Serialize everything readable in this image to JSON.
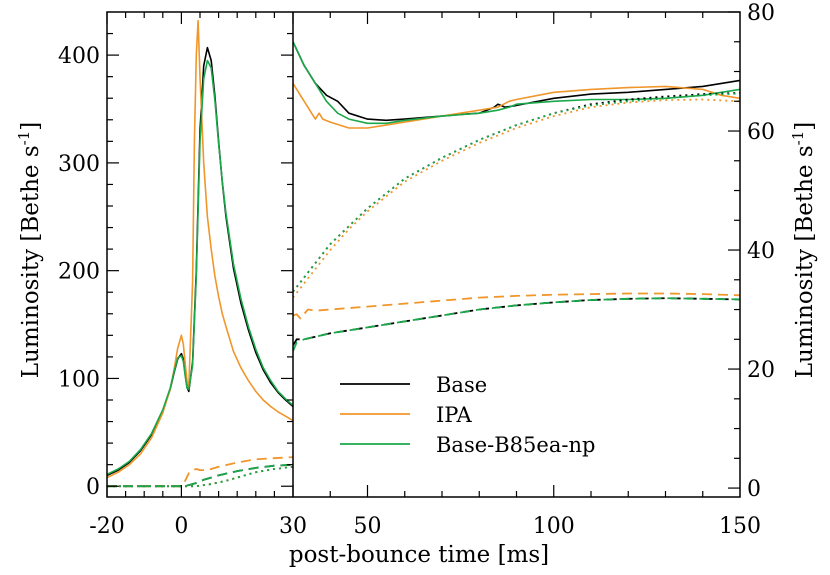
{
  "chart_data": {
    "type": "line",
    "xlabel": "post-bounce time [ms]",
    "panels": [
      {
        "id": "left",
        "xlim": [
          -20,
          30
        ],
        "ylim": [
          -10,
          440
        ],
        "xticks": [
          -20,
          0,
          30
        ],
        "xtick_labels": [
          "-20",
          "0",
          "30"
        ],
        "yticks": [
          0,
          100,
          200,
          300,
          400
        ],
        "ytick_labels": [
          "0",
          "100",
          "200",
          "300",
          "400"
        ],
        "ylabel_parts": [
          "Luminosity [Bethe s",
          "-1",
          "]"
        ]
      },
      {
        "id": "right",
        "xlim": [
          30,
          150
        ],
        "ylim": [
          -1.5,
          80
        ],
        "xticks": [
          50,
          100,
          150
        ],
        "xtick_labels": [
          "50",
          "100",
          "150"
        ],
        "yticks": [
          0,
          20,
          40,
          60,
          80
        ],
        "ytick_labels": [
          "0",
          "20",
          "40",
          "60",
          "80"
        ],
        "ylabel_parts": [
          "Luminosity [Bethe s",
          "-1",
          "]"
        ]
      }
    ],
    "legend": {
      "position": "bottom-left of right panel",
      "entries": [
        {
          "label": "Base",
          "color": "#000000"
        },
        {
          "label": "IPA",
          "color": "#f0962a"
        },
        {
          "label": "Base-B85ea-np",
          "color": "#1aa84a"
        }
      ]
    },
    "series": [
      {
        "model": "Base",
        "style": "solid",
        "color": "#000000",
        "panel": "left",
        "x": [
          -20,
          -17,
          -14,
          -11,
          -8,
          -5,
          -3,
          -2,
          -1,
          0,
          0.5,
          1,
          1.5,
          2,
          3,
          4,
          5,
          6,
          7,
          8,
          9,
          10,
          11,
          12,
          14,
          16,
          18,
          20,
          22,
          24,
          26,
          28,
          30
        ],
        "y": [
          10,
          15,
          22,
          33,
          48,
          70,
          90,
          105,
          118,
          123,
          118,
          105,
          92,
          88,
          115,
          200,
          330,
          390,
          407,
          395,
          362,
          320,
          282,
          250,
          202,
          170,
          145,
          124,
          108,
          96,
          87,
          80,
          74
        ]
      },
      {
        "model": "IPA",
        "style": "solid",
        "color": "#f0962a",
        "panel": "left",
        "x": [
          -20,
          -17,
          -14,
          -11,
          -8,
          -5,
          -3,
          -2,
          -1,
          0,
          0.5,
          1,
          1.5,
          2,
          3,
          3.5,
          4,
          4.5,
          5,
          6,
          7,
          8,
          9,
          10,
          11,
          12,
          14,
          16,
          18,
          20,
          22,
          24,
          26,
          28,
          30
        ],
        "y": [
          8,
          13,
          20,
          30,
          45,
          68,
          90,
          108,
          128,
          140,
          132,
          115,
          98,
          92,
          190,
          320,
          400,
          432,
          380,
          300,
          250,
          220,
          195,
          176,
          160,
          148,
          125,
          110,
          98,
          88,
          80,
          74,
          69,
          65,
          61
        ]
      },
      {
        "model": "Base-B85ea-np",
        "style": "solid",
        "color": "#1aa84a",
        "panel": "left",
        "x": [
          -20,
          -17,
          -14,
          -11,
          -8,
          -5,
          -3,
          -2,
          -1,
          0,
          0.5,
          1,
          1.5,
          2,
          3,
          4,
          5,
          6,
          7,
          8,
          9,
          10,
          11,
          12,
          14,
          16,
          18,
          20,
          22,
          24,
          26,
          28,
          30
        ],
        "y": [
          11,
          16,
          23,
          34,
          49,
          71,
          91,
          106,
          119,
          121,
          116,
          103,
          91,
          90,
          112,
          195,
          320,
          378,
          395,
          388,
          358,
          318,
          283,
          253,
          206,
          174,
          148,
          127,
          110,
          98,
          88,
          81,
          75
        ]
      },
      {
        "model": "Base",
        "style": "dashed",
        "color": "#000000",
        "panel": "left",
        "x": [
          -20,
          -10,
          0,
          2,
          4,
          6,
          10,
          15,
          20,
          25,
          30
        ],
        "y": [
          0,
          0,
          0,
          1,
          3,
          6,
          10,
          14,
          17,
          19,
          20
        ]
      },
      {
        "model": "IPA",
        "style": "dashed",
        "color": "#f0962a",
        "panel": "left",
        "x": [
          -20,
          -10,
          0,
          1,
          2,
          3,
          4,
          5,
          7,
          10,
          15,
          20,
          25,
          30
        ],
        "y": [
          0,
          0,
          0,
          5,
          12,
          15,
          16,
          15,
          15,
          18,
          22,
          25,
          26,
          27
        ]
      },
      {
        "model": "Base-B85ea-np",
        "style": "dashed",
        "color": "#1aa84a",
        "panel": "left",
        "x": [
          -20,
          -10,
          0,
          2,
          4,
          6,
          10,
          15,
          20,
          25,
          30
        ],
        "y": [
          0,
          0,
          0,
          1,
          3,
          6,
          10,
          14,
          17,
          19,
          20
        ]
      },
      {
        "model": "Base",
        "style": "dotted",
        "color": "#000000",
        "panel": "left",
        "x": [
          -20,
          0,
          4,
          8,
          12,
          16,
          20,
          25,
          30
        ],
        "y": [
          0,
          0,
          0,
          2,
          5,
          9,
          13,
          16,
          18
        ]
      },
      {
        "model": "IPA",
        "style": "dotted",
        "color": "#f0962a",
        "panel": "left",
        "x": [
          -20,
          0,
          4,
          8,
          12,
          16,
          20,
          25,
          30
        ],
        "y": [
          0,
          0,
          0,
          2,
          5,
          9,
          13,
          16,
          18
        ]
      },
      {
        "model": "Base-B85ea-np",
        "style": "dotted",
        "color": "#1aa84a",
        "panel": "left",
        "x": [
          -20,
          0,
          4,
          8,
          12,
          16,
          20,
          25,
          30
        ],
        "y": [
          0,
          0,
          0,
          2,
          5,
          9,
          13,
          16,
          18
        ]
      },
      {
        "model": "Base",
        "style": "solid",
        "color": "#000000",
        "panel": "right",
        "x": [
          30,
          33,
          36,
          39,
          42,
          45,
          50,
          55,
          60,
          70,
          75,
          80,
          82,
          84,
          85,
          87,
          90,
          100,
          110,
          120,
          130,
          140,
          150
        ],
        "y": [
          75,
          71,
          68,
          66,
          65,
          63,
          62,
          61.8,
          62,
          62.5,
          62.8,
          63,
          63.5,
          64,
          64.5,
          64,
          64.3,
          65.5,
          66.2,
          66.5,
          67,
          67.5,
          68.5
        ]
      },
      {
        "model": "IPA",
        "style": "solid",
        "color": "#f0962a",
        "panel": "right",
        "x": [
          30,
          32,
          34,
          35,
          36,
          37,
          38,
          40,
          45,
          50,
          55,
          60,
          70,
          80,
          85,
          88,
          90,
          100,
          110,
          120,
          130,
          140,
          145,
          150
        ],
        "y": [
          68,
          66,
          64,
          63,
          62,
          63,
          62,
          61.5,
          60.5,
          60.5,
          61,
          61.5,
          62.5,
          63.5,
          64,
          65,
          65.3,
          66.5,
          67,
          67.3,
          67.5,
          67,
          66,
          65.5
        ]
      },
      {
        "model": "Base-B85ea-np",
        "style": "solid",
        "color": "#1aa84a",
        "panel": "right",
        "x": [
          30,
          33,
          36,
          39,
          42,
          45,
          50,
          55,
          60,
          70,
          80,
          85,
          88,
          90,
          100,
          110,
          120,
          130,
          140,
          145,
          150
        ],
        "y": [
          75,
          71,
          68,
          65,
          63,
          62,
          61.3,
          61.3,
          61.8,
          62.5,
          63,
          63.5,
          64,
          64.5,
          65,
          65.3,
          65.3,
          65.5,
          66,
          66.5,
          67
        ]
      },
      {
        "model": "Base",
        "style": "dashed",
        "color": "#000000",
        "panel": "right",
        "x": [
          30,
          31,
          33,
          40,
          50,
          60,
          70,
          80,
          90,
          100,
          110,
          120,
          130,
          140,
          150
        ],
        "y": [
          24,
          25,
          25,
          26,
          27,
          28,
          29,
          30,
          30.7,
          31.2,
          31.6,
          31.8,
          31.9,
          31.8,
          31.7
        ]
      },
      {
        "model": "IPA",
        "style": "dashed",
        "color": "#f0962a",
        "panel": "right",
        "x": [
          30,
          31,
          32,
          34,
          36,
          40,
          50,
          60,
          70,
          80,
          90,
          100,
          110,
          120,
          130,
          140,
          150
        ],
        "y": [
          29,
          29.2,
          28.5,
          30,
          29.8,
          30,
          30.5,
          31,
          31.5,
          32,
          32.3,
          32.5,
          32.6,
          32.7,
          32.7,
          32.6,
          32.4
        ]
      },
      {
        "model": "Base-B85ea-np",
        "style": "dashed",
        "color": "#1aa84a",
        "panel": "right",
        "x": [
          30,
          31,
          33,
          40,
          50,
          60,
          70,
          80,
          90,
          100,
          110,
          120,
          130,
          140,
          150
        ],
        "y": [
          23,
          24.5,
          25,
          26,
          27,
          28,
          29,
          30,
          30.7,
          31.2,
          31.6,
          31.8,
          31.9,
          31.8,
          31.7
        ]
      },
      {
        "model": "Base",
        "style": "dotted",
        "color": "#000000",
        "panel": "right",
        "x": [
          30,
          35,
          40,
          45,
          50,
          60,
          70,
          80,
          90,
          100,
          110,
          120,
          130,
          140,
          150
        ],
        "y": [
          33,
          37,
          41,
          44,
          47,
          52,
          55.5,
          58.5,
          61,
          63,
          64.5,
          65.3,
          65.8,
          66.2,
          66.4
        ]
      },
      {
        "model": "IPA",
        "style": "dotted",
        "color": "#f0962a",
        "panel": "right",
        "x": [
          30,
          35,
          40,
          45,
          50,
          60,
          70,
          80,
          90,
          100,
          110,
          120,
          130,
          140,
          150
        ],
        "y": [
          32,
          36,
          40,
          43.5,
          46.5,
          51.5,
          55,
          58,
          60.5,
          62.5,
          64,
          64.8,
          65.2,
          65.3,
          65
        ]
      },
      {
        "model": "Base-B85ea-np",
        "style": "dotted",
        "color": "#1aa84a",
        "panel": "right",
        "x": [
          30,
          35,
          40,
          45,
          50,
          60,
          70,
          80,
          90,
          100,
          110,
          120,
          130,
          140,
          150
        ],
        "y": [
          33,
          37,
          41,
          44,
          47,
          52,
          55.5,
          58.5,
          61,
          63,
          64.3,
          65,
          65.5,
          66,
          66.3
        ]
      }
    ]
  }
}
